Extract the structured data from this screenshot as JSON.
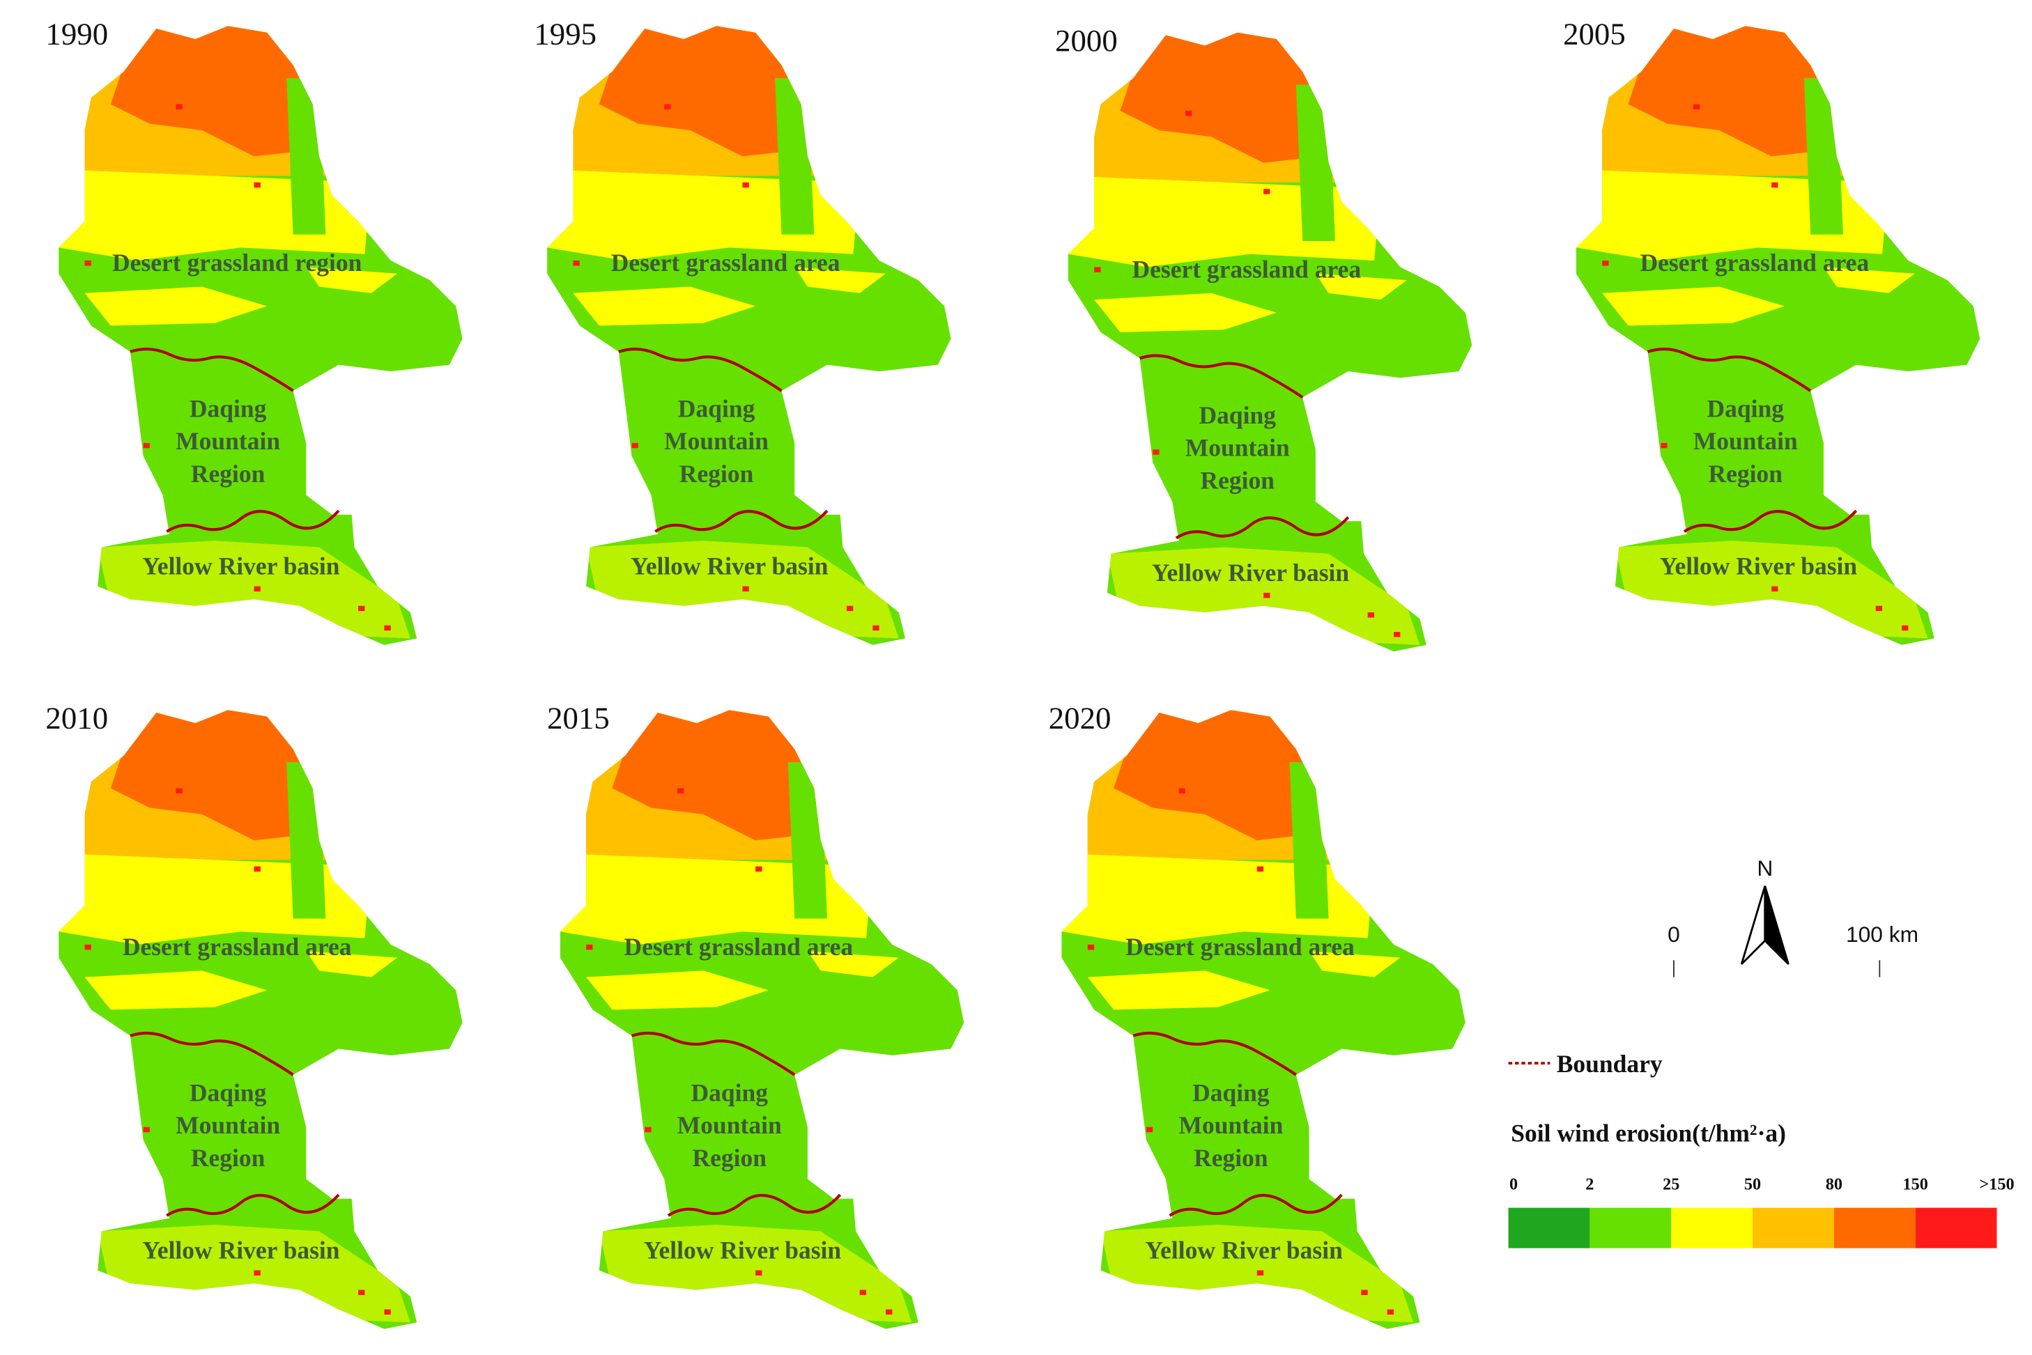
{
  "panels": [
    {
      "year": "1990",
      "desert": "Desert grassland region",
      "daqing": [
        "Daqing",
        "Mountain",
        "Region"
      ],
      "yellow": "Yellow River basin"
    },
    {
      "year": "1995",
      "desert": "Desert grassland area",
      "daqing": [
        "Daqing",
        "Mountain",
        "Region"
      ],
      "yellow": "Yellow River basin"
    },
    {
      "year": "2000",
      "desert": "Desert grassland area",
      "daqing": [
        "Daqing",
        "Mountain",
        "Region"
      ],
      "yellow": "Yellow River basin"
    },
    {
      "year": "2005",
      "desert": "Desert grassland area",
      "daqing": [
        "Daqing",
        "Mountain",
        "Region"
      ],
      "yellow": "Yellow River basin"
    },
    {
      "year": "2010",
      "desert": "Desert grassland area",
      "daqing": [
        "Daqing",
        "Mountain",
        "Region"
      ],
      "yellow": "Yellow River basin"
    },
    {
      "year": "2015",
      "desert": "Desert grassland area",
      "daqing": [
        "Daqing",
        "Mountain",
        "Region"
      ],
      "yellow": "Yellow River basin"
    },
    {
      "year": "2020",
      "desert": "Desert grassland area",
      "daqing": [
        "Daqing",
        "Mountain",
        "Region"
      ],
      "yellow": "Yellow River basin"
    }
  ],
  "north": "N",
  "scale_bar": [
    "0",
    "100 km"
  ],
  "legend": {
    "boundary": "Boundary",
    "title": "Soil wind erosion(t/hm²·a)",
    "breaks": [
      0,
      2,
      25,
      50,
      80,
      150,
      ">150"
    ],
    "colors": [
      "#1fa71f",
      "#66e000",
      "#ffff00",
      "#ffc000",
      "#ff6a00",
      "#ff1a1a"
    ]
  }
}
